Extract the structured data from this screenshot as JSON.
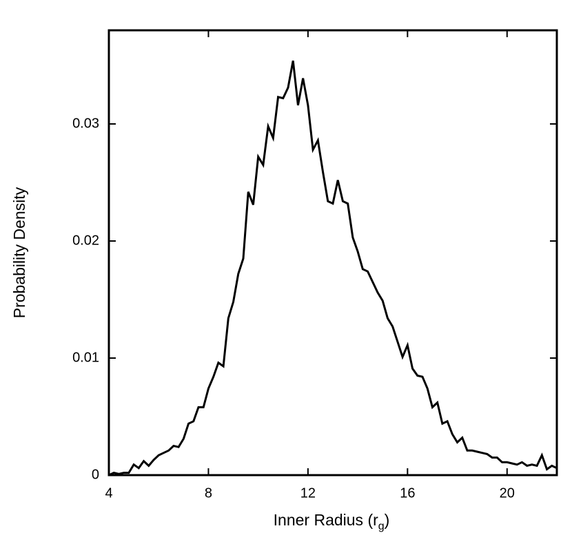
{
  "chart_data": {
    "type": "line",
    "xlabel": {
      "text": "Inner Radius (r",
      "subscript": "g",
      "suffix": ")"
    },
    "ylabel": "Probability Density",
    "x": [
      4.0,
      4.2,
      4.4,
      4.6,
      4.8,
      5.0,
      5.2,
      5.4,
      5.6,
      5.8,
      6.0,
      6.2,
      6.4,
      6.6,
      6.8,
      7.0,
      7.2,
      7.4,
      7.6,
      7.8,
      8.0,
      8.2,
      8.4,
      8.6,
      8.8,
      9.0,
      9.2,
      9.4,
      9.6,
      9.8,
      10.0,
      10.2,
      10.4,
      10.6,
      10.8,
      11.0,
      11.2,
      11.4,
      11.6,
      11.8,
      12.0,
      12.2,
      12.4,
      12.6,
      12.8,
      13.0,
      13.2,
      13.4,
      13.6,
      13.8,
      14.0,
      14.2,
      14.4,
      14.6,
      14.8,
      15.0,
      15.2,
      15.4,
      15.6,
      15.8,
      16.0,
      16.2,
      16.4,
      16.6,
      16.8,
      17.0,
      17.2,
      17.4,
      17.6,
      17.8,
      18.0,
      18.2,
      18.4,
      18.6,
      18.8,
      19.0,
      19.2,
      19.4,
      19.6,
      19.8,
      20.0,
      20.2,
      20.4,
      20.6,
      20.8,
      21.0,
      21.2,
      21.4,
      21.6,
      21.8,
      22.0
    ],
    "series": [
      {
        "color": "#000000",
        "values": [
          0,
          0.0002,
          0.0001,
          0.0002,
          0.0002,
          0.0009,
          0.0006,
          0.0012,
          0.0008,
          0.0013,
          0.0017,
          0.0019,
          0.0021,
          0.0025,
          0.0024,
          0.0031,
          0.0044,
          0.0046,
          0.0058,
          0.0058,
          0.0074,
          0.0084,
          0.0096,
          0.0093,
          0.0134,
          0.0148,
          0.0172,
          0.0185,
          0.0242,
          0.0231,
          0.0272,
          0.0265,
          0.0298,
          0.0288,
          0.0323,
          0.0322,
          0.0331,
          0.0354,
          0.0316,
          0.0339,
          0.0316,
          0.0278,
          0.0286,
          0.0259,
          0.0234,
          0.0232,
          0.0252,
          0.0234,
          0.0232,
          0.0203,
          0.0191,
          0.0176,
          0.0174,
          0.0165,
          0.0156,
          0.0149,
          0.0134,
          0.0127,
          0.0114,
          0.0101,
          0.0111,
          0.0091,
          0.0085,
          0.0084,
          0.0074,
          0.0058,
          0.0062,
          0.0044,
          0.0046,
          0.0035,
          0.0028,
          0.0032,
          0.0021,
          0.0021,
          0.002,
          0.0019,
          0.0018,
          0.0015,
          0.0015,
          0.0011,
          0.0011,
          0.001,
          0.0009,
          0.0011,
          0.0008,
          0.0009,
          0.0008,
          0.0017,
          0.0005,
          0.0008,
          0.0006
        ]
      }
    ],
    "xlim": [
      4,
      22
    ],
    "xticks": [
      4,
      8,
      12,
      16,
      20
    ],
    "ylim": [
      0,
      0.038
    ],
    "yticks": [
      0,
      0.01,
      0.02,
      0.03
    ],
    "grid": false
  }
}
